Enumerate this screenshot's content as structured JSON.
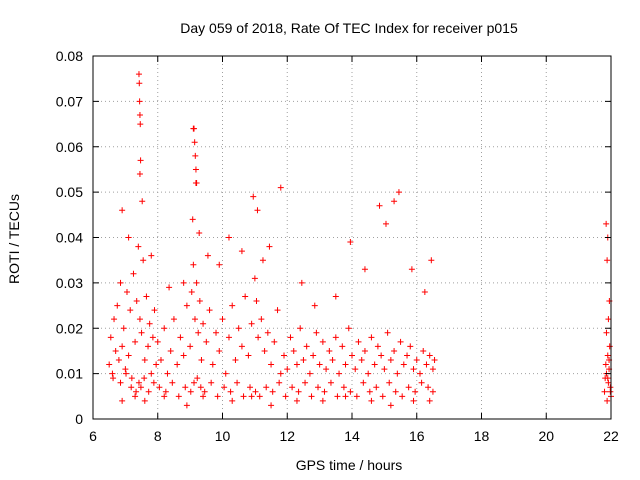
{
  "chart_data": {
    "type": "scatter",
    "title": "Day 059 of 2018, Rate Of TEC Index for receiver p015",
    "xlabel": "GPS time / hours",
    "ylabel": "ROTI / TECUs",
    "xlim": [
      6,
      22
    ],
    "ylim": [
      0,
      0.08
    ],
    "xticks": [
      "6",
      "8",
      "10",
      "12",
      "14",
      "16",
      "18",
      "20",
      "22"
    ],
    "yticks": [
      "0",
      "0.01",
      "0.02",
      "0.03",
      "0.04",
      "0.05",
      "0.06",
      "0.07",
      "0.08"
    ],
    "grid": true,
    "marker": "+",
    "series": [
      {
        "name": "ROTI",
        "color": "#ff0000",
        "x": [
          6.5,
          6.55,
          6.6,
          6.65,
          6.7,
          6.75,
          6.8,
          6.85,
          6.9,
          6.95,
          7.0,
          7.05,
          7.1,
          7.15,
          7.2,
          7.25,
          7.3,
          7.35,
          7.4,
          7.45,
          7.5,
          7.55,
          7.6,
          7.65,
          7.7,
          7.75,
          7.8,
          7.85,
          7.9,
          7.95,
          8.0,
          8.1,
          8.2,
          8.3,
          8.4,
          8.5,
          8.6,
          8.7,
          8.8,
          8.9,
          9.0,
          9.05,
          9.1,
          9.15,
          9.2,
          9.25,
          9.3,
          9.35,
          9.4,
          9.5,
          9.6,
          9.7,
          9.8,
          9.9,
          10.0,
          10.1,
          10.2,
          10.3,
          10.4,
          10.5,
          10.6,
          10.7,
          10.8,
          10.9,
          11.0,
          11.05,
          11.1,
          11.2,
          11.3,
          11.4,
          11.5,
          11.6,
          11.7,
          11.8,
          11.9,
          12.0,
          12.1,
          12.2,
          12.3,
          12.4,
          12.5,
          12.6,
          12.7,
          12.8,
          12.9,
          13.0,
          13.1,
          13.2,
          13.3,
          13.4,
          13.5,
          13.6,
          13.7,
          13.8,
          13.9,
          14.0,
          14.1,
          14.2,
          14.3,
          14.4,
          14.5,
          14.6,
          14.7,
          14.8,
          14.9,
          15.0,
          15.1,
          15.2,
          15.3,
          15.4,
          15.5,
          15.6,
          15.7,
          15.8,
          15.9,
          16.0,
          16.1,
          16.2,
          16.3,
          16.4,
          16.5,
          16.55,
          6.62,
          6.85,
          7.02,
          7.18,
          7.33,
          7.42,
          7.48,
          7.58,
          7.72,
          7.88,
          8.05,
          8.25,
          8.45,
          8.65,
          8.85,
          9.02,
          9.12,
          9.22,
          9.33,
          9.45,
          9.65,
          9.85,
          10.05,
          10.25,
          10.45,
          10.65,
          10.85,
          11.02,
          11.15,
          11.35,
          11.55,
          11.75,
          11.95,
          12.15,
          12.35,
          12.55,
          12.75,
          12.95,
          13.15,
          13.35,
          13.55,
          13.75,
          13.95,
          14.15,
          14.35,
          14.55,
          14.75,
          14.95,
          15.15,
          15.35,
          15.55,
          15.75,
          15.95,
          16.15,
          16.35,
          16.5,
          6.9,
          7.1,
          7.45,
          7.52,
          7.8,
          8.35,
          8.8,
          9.08,
          9.18,
          9.28,
          9.55,
          9.9,
          10.2,
          10.6,
          10.95,
          11.08,
          11.25,
          11.45,
          11.8,
          12.45,
          12.85,
          13.5,
          13.95,
          14.4,
          14.85,
          15.05,
          15.3,
          15.45,
          15.85,
          16.25,
          16.45,
          7.42,
          7.43,
          7.44,
          7.45,
          7.46,
          7.47,
          9.1,
          9.12,
          9.14,
          9.16,
          9.18,
          9.2,
          6.9,
          7.3,
          7.6,
          8.2,
          8.9,
          9.4,
          10.3,
          10.9,
          11.5,
          12.3,
          13.1,
          13.8,
          14.6,
          15.2,
          15.9,
          16.4,
          21.8,
          21.82,
          21.84,
          21.86,
          21.88,
          21.9,
          21.92,
          21.94,
          21.96,
          21.98,
          22.0,
          21.85,
          21.9,
          21.95,
          21.88,
          21.92,
          21.86,
          21.94,
          21.9,
          21.98
        ],
        "y": [
          0.012,
          0.018,
          0.01,
          0.022,
          0.015,
          0.025,
          0.013,
          0.03,
          0.016,
          0.02,
          0.011,
          0.028,
          0.014,
          0.024,
          0.009,
          0.032,
          0.017,
          0.026,
          0.038,
          0.022,
          0.019,
          0.035,
          0.013,
          0.027,
          0.016,
          0.021,
          0.01,
          0.018,
          0.024,
          0.012,
          0.017,
          0.013,
          0.02,
          0.01,
          0.015,
          0.022,
          0.012,
          0.018,
          0.014,
          0.025,
          0.016,
          0.028,
          0.034,
          0.022,
          0.03,
          0.019,
          0.026,
          0.013,
          0.021,
          0.017,
          0.024,
          0.012,
          0.019,
          0.015,
          0.022,
          0.01,
          0.018,
          0.025,
          0.013,
          0.02,
          0.016,
          0.027,
          0.014,
          0.021,
          0.031,
          0.026,
          0.018,
          0.022,
          0.015,
          0.019,
          0.012,
          0.017,
          0.024,
          0.01,
          0.014,
          0.011,
          0.018,
          0.015,
          0.012,
          0.02,
          0.013,
          0.016,
          0.01,
          0.014,
          0.019,
          0.012,
          0.017,
          0.011,
          0.015,
          0.013,
          0.018,
          0.01,
          0.016,
          0.012,
          0.02,
          0.014,
          0.011,
          0.017,
          0.013,
          0.015,
          0.01,
          0.018,
          0.012,
          0.016,
          0.014,
          0.011,
          0.019,
          0.013,
          0.015,
          0.01,
          0.017,
          0.012,
          0.014,
          0.016,
          0.011,
          0.013,
          0.01,
          0.015,
          0.012,
          0.014,
          0.011,
          0.013,
          0.009,
          0.008,
          0.01,
          0.007,
          0.006,
          0.008,
          0.007,
          0.009,
          0.006,
          0.008,
          0.007,
          0.006,
          0.008,
          0.005,
          0.007,
          0.006,
          0.008,
          0.009,
          0.007,
          0.006,
          0.008,
          0.005,
          0.007,
          0.006,
          0.008,
          0.005,
          0.007,
          0.006,
          0.005,
          0.007,
          0.006,
          0.008,
          0.005,
          0.007,
          0.006,
          0.008,
          0.005,
          0.007,
          0.006,
          0.008,
          0.005,
          0.007,
          0.006,
          0.005,
          0.008,
          0.006,
          0.007,
          0.005,
          0.008,
          0.006,
          0.005,
          0.007,
          0.006,
          0.008,
          0.007,
          0.006,
          0.046,
          0.04,
          0.054,
          0.048,
          0.036,
          0.029,
          0.03,
          0.044,
          0.052,
          0.041,
          0.036,
          0.034,
          0.04,
          0.037,
          0.049,
          0.046,
          0.035,
          0.038,
          0.051,
          0.03,
          0.025,
          0.027,
          0.039,
          0.033,
          0.047,
          0.043,
          0.048,
          0.05,
          0.033,
          0.028,
          0.035,
          0.076,
          0.074,
          0.07,
          0.067,
          0.065,
          0.057,
          0.064,
          0.064,
          0.061,
          0.058,
          0.055,
          0.052,
          0.004,
          0.005,
          0.004,
          0.005,
          0.003,
          0.005,
          0.004,
          0.005,
          0.003,
          0.004,
          0.004,
          0.005,
          0.004,
          0.003,
          0.004,
          0.004,
          0.006,
          0.009,
          0.012,
          0.01,
          0.004,
          0.014,
          0.008,
          0.011,
          0.016,
          0.007,
          0.005,
          0.043,
          0.04,
          0.026,
          0.035,
          0.022,
          0.019,
          0.013,
          0.009,
          0.006
        ]
      }
    ]
  }
}
